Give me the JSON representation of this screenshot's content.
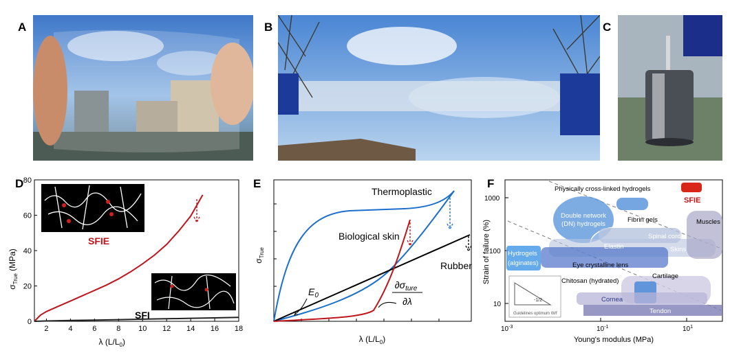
{
  "panels": {
    "a": "A",
    "b": "B",
    "c": "C",
    "d": "D",
    "e": "E",
    "f": "F"
  },
  "chart_d": {
    "type": "line",
    "xlabel": "λ (L/L",
    "xlabel_sub": "0",
    "xlabel_tail": ")",
    "ylabel": "σ",
    "ylabel_sub": "True",
    "ylabel_tail": " (MPa)",
    "xlim": [
      1,
      18
    ],
    "ylim": [
      0,
      80
    ],
    "xticks": [
      "2",
      "4",
      "6",
      "8",
      "10",
      "12",
      "14",
      "16",
      "18"
    ],
    "yticks": [
      "0",
      "20",
      "40",
      "60",
      "80"
    ],
    "series": [
      {
        "name": "SFIE",
        "color": "#c0151b",
        "x": [
          1,
          1.5,
          2,
          3,
          4,
          5,
          6,
          7,
          8,
          9,
          10,
          11,
          12,
          13,
          14,
          15
        ],
        "y": [
          0,
          3.5,
          5.5,
          8.5,
          11.5,
          14.5,
          17.5,
          20.5,
          24,
          28,
          32.5,
          37.5,
          43.5,
          51,
          59.5,
          71.5
        ]
      },
      {
        "name": "SFI",
        "color": "#222222",
        "x": [
          1,
          2,
          4,
          6,
          8,
          10,
          12,
          14,
          16,
          18
        ],
        "y": [
          0,
          0.2,
          0.45,
          0.7,
          0.95,
          1.2,
          1.45,
          1.7,
          1.95,
          2.2
        ]
      }
    ]
  },
  "chart_e": {
    "type": "line",
    "xlabel": "λ (L/L",
    "xlabel_sub": "0",
    "xlabel_tail": ")",
    "ylabel": "σ",
    "ylabel_sub": "True",
    "labels": {
      "thermoplastic": "Thermoplastic",
      "bio": "Biological skin",
      "rubber": "Rubber",
      "e0": "E",
      "e0_sub": "0",
      "deriv_num": "∂σ",
      "deriv_num_sub": "ture",
      "deriv_den": "∂λ"
    }
  },
  "chart_f": {
    "type": "scatter",
    "xlabel": "Young's modulus (MPa)",
    "ylabel": "Strain of failure (%)",
    "xtick_base": "10",
    "xtick_exps": [
      "-3",
      "-1",
      "1"
    ],
    "yticks": [
      "1000",
      "100",
      "10"
    ],
    "labels": {
      "pch": "Physically cross-linked hydrogels",
      "sfie": "SFIE",
      "dn1": "Double network",
      "dn2": "(DN) hydrogels",
      "fibrin": "Fibrin gels",
      "muscles": "Muscles",
      "spinal": "Spinal cord",
      "elastin": "Elastin",
      "skins": "Skins",
      "hyd1": "Hydrogels",
      "hyd2": "(alginates)",
      "eye": "Eye crystalline lens",
      "chitosan": "Chitosan (hydrated)",
      "cartilage": "Cartilage",
      "cornea": "Cornea",
      "tendon": "Tendon",
      "slope": "-1/2",
      "guide": "Guidelines optimum W/f"
    }
  }
}
